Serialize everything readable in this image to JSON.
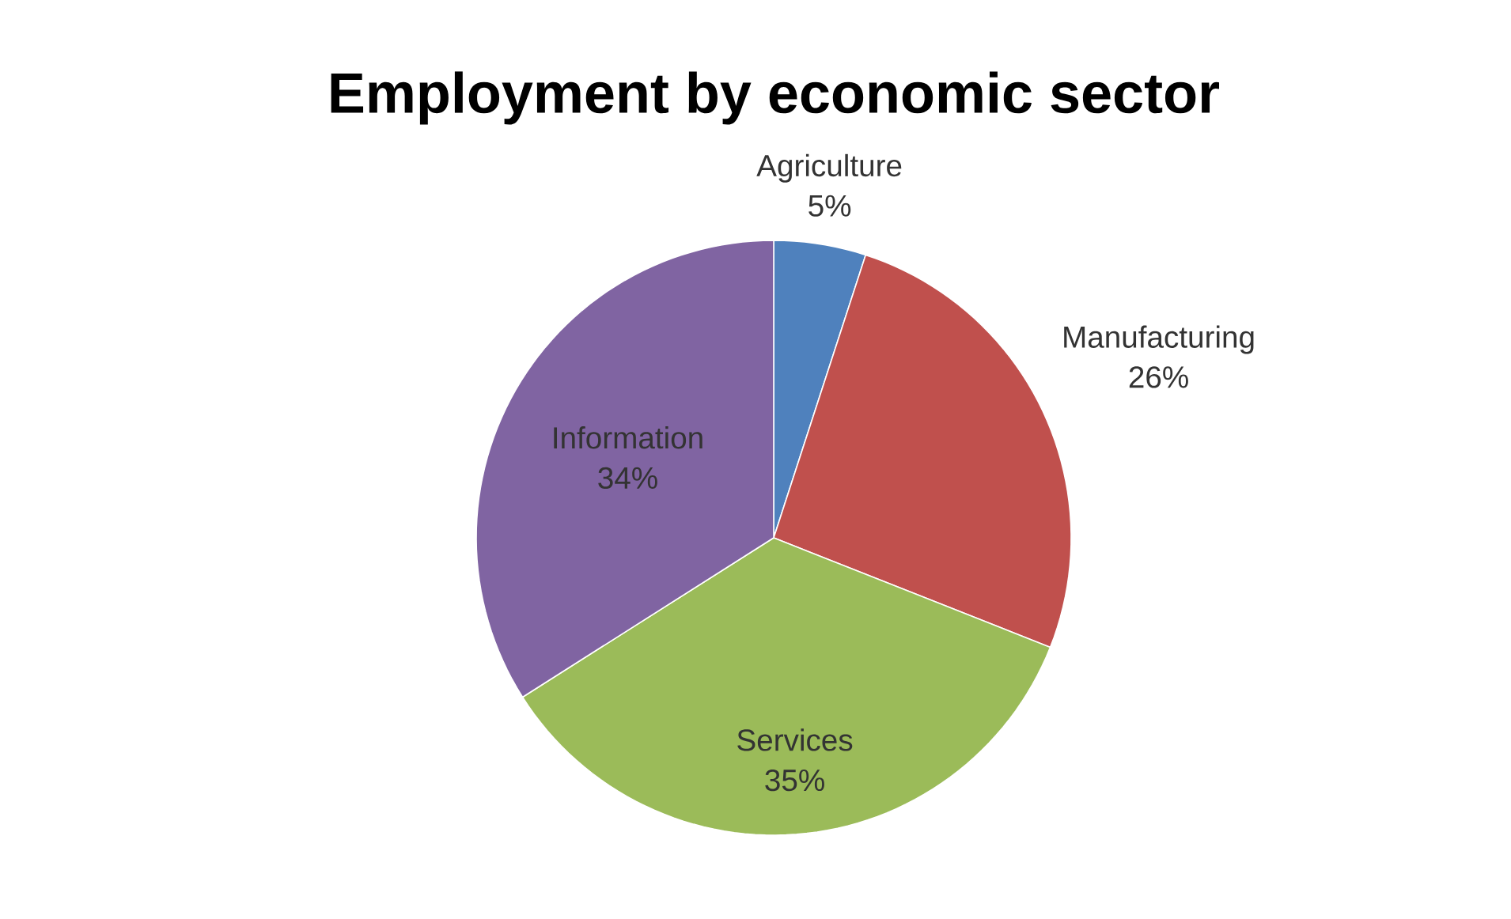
{
  "chart_data": {
    "type": "pie",
    "title": "Employment by economic sector",
    "categories": [
      "Agriculture",
      "Manufacturing",
      "Services",
      "Information"
    ],
    "values": [
      5,
      26,
      35,
      34
    ],
    "value_labels": [
      "5%",
      "26%",
      "35%",
      "34%"
    ],
    "colors": [
      "#4f81bd",
      "#c0504d",
      "#9bbb59",
      "#8064a2"
    ]
  }
}
